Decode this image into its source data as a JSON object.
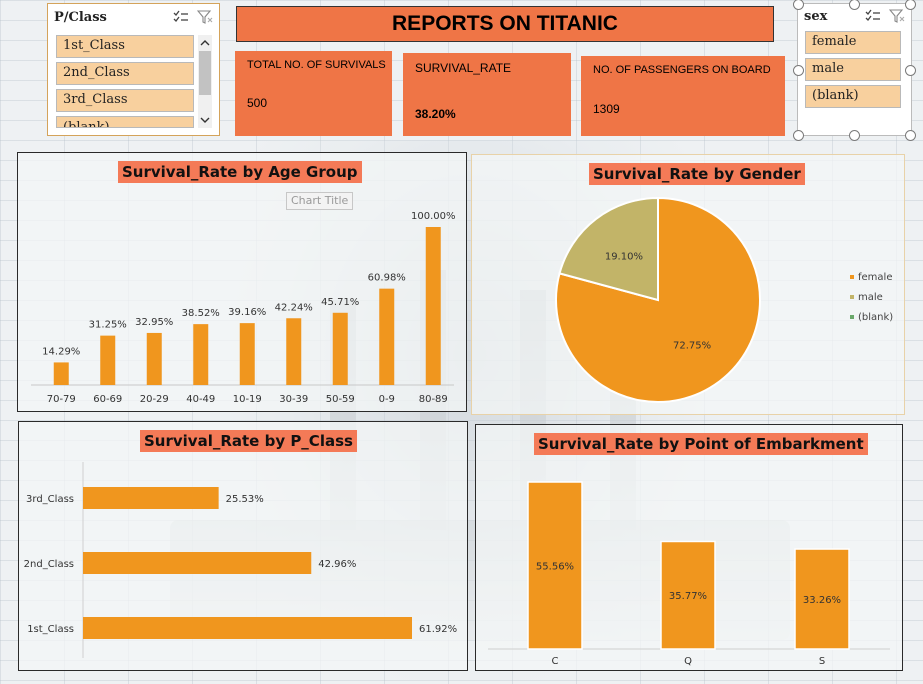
{
  "colors": {
    "bar": "#f0961e",
    "accent": "#ef7546",
    "title_bg": "#f47a57",
    "slicer_item": "#f8d09e",
    "pie_female": "#f0961e",
    "pie_male": "#c2b468",
    "pie_blank": "#6aa86a"
  },
  "pclass_slicer": {
    "title": "P/Class",
    "items": [
      "1st_Class",
      "2nd_Class",
      "3rd_Class",
      "(blank)"
    ],
    "icons": [
      "multi-select-icon",
      "clear-filter-icon",
      "scroll-up-icon",
      "scroll-down-icon"
    ]
  },
  "sex_slicer": {
    "title": "sex",
    "items": [
      "female",
      "male",
      "(blank)"
    ]
  },
  "banner": {
    "title": "REPORTS ON TITANIC"
  },
  "kpis": [
    {
      "label": "TOTAL NO. OF SURVIVALS",
      "value": "500"
    },
    {
      "label": "SURVIVAL_RATE",
      "value": "38.20%"
    },
    {
      "label": "NO. OF PASSENGERS ON BOARD",
      "value": "1309"
    }
  ],
  "ghost_chart_title": "Chart Title",
  "chart_data": [
    {
      "type": "bar",
      "title": "Survival_Rate by Age Group",
      "categories": [
        "70-79",
        "60-69",
        "20-29",
        "40-49",
        "10-19",
        "30-39",
        "50-59",
        "0-9",
        "80-89"
      ],
      "values": [
        14.29,
        31.25,
        32.95,
        38.52,
        39.16,
        42.24,
        45.71,
        60.98,
        100.0
      ],
      "labels": [
        "14.29%",
        "31.25%",
        "32.95%",
        "38.52%",
        "39.16%",
        "42.24%",
        "45.71%",
        "60.98%",
        "100.00%"
      ],
      "ylim": [
        0,
        100
      ]
    },
    {
      "type": "pie",
      "title": "Survival_Rate by Gender",
      "categories": [
        "female",
        "male",
        "(blank)"
      ],
      "values": [
        72.75,
        19.1,
        0
      ],
      "labels": [
        "72.75%",
        "19.10%",
        ""
      ],
      "legend": "right"
    },
    {
      "type": "bar",
      "orientation": "horizontal",
      "title": "Survival_Rate by P_Class",
      "categories": [
        "3rd_Class",
        "2nd_Class",
        "1st_Class"
      ],
      "values": [
        25.53,
        42.96,
        61.92
      ],
      "labels": [
        "25.53%",
        "42.96%",
        "61.92%"
      ]
    },
    {
      "type": "bar",
      "title": "Survival_Rate by Point of Embarkment",
      "categories": [
        "C",
        "Q",
        "S"
      ],
      "values": [
        55.56,
        35.77,
        33.26
      ],
      "labels": [
        "55.56%",
        "35.77%",
        "33.26%"
      ]
    }
  ]
}
